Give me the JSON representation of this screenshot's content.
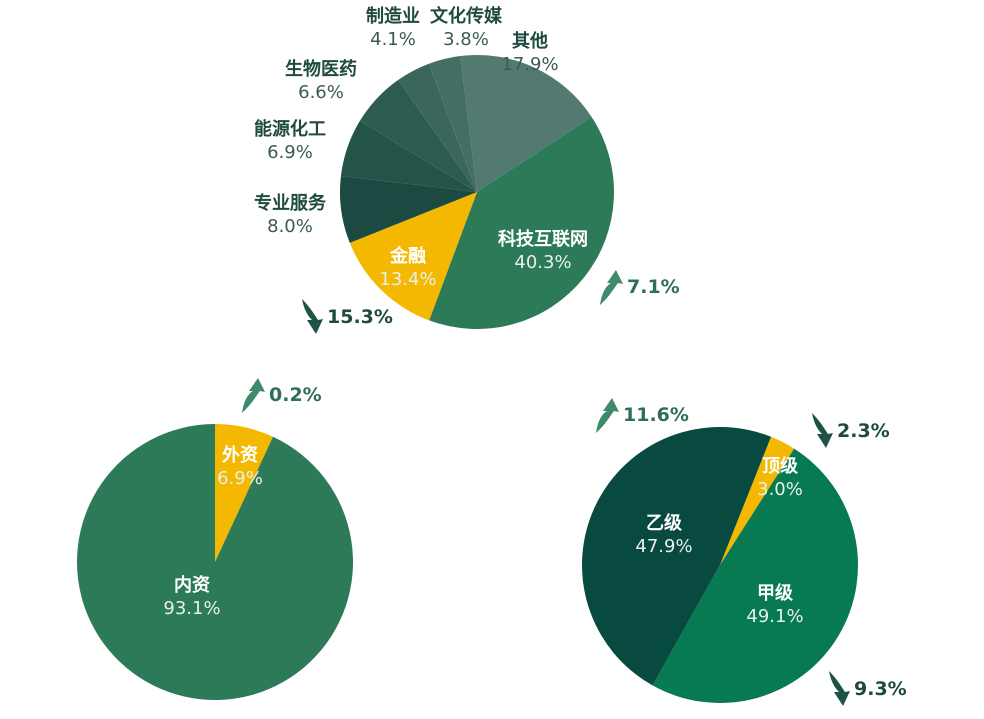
{
  "chart_data": [
    {
      "type": "pie",
      "slices": [
        {
          "label": "其他",
          "value": 17.9,
          "color": "#527a70"
        },
        {
          "label": "科技互联网",
          "value": 40.3,
          "color": "#2d7a58"
        },
        {
          "label": "金融",
          "value": 13.4,
          "color": "#f5b800"
        },
        {
          "label": "专业服务",
          "value": 8.0,
          "color": "#1c4a42"
        },
        {
          "label": "能源化工",
          "value": 6.9,
          "color": "#245448"
        },
        {
          "label": "生物医药",
          "value": 6.6,
          "color": "#2c5c50"
        },
        {
          "label": "制造业",
          "value": 4.1,
          "color": "#3a665c"
        },
        {
          "label": "文化传媒",
          "value": 3.8,
          "color": "#446e64"
        }
      ],
      "annotations": [
        {
          "target": "科技互联网",
          "direction": "up",
          "text": "7.1%"
        },
        {
          "target": "金融",
          "direction": "down",
          "text": "15.3%"
        }
      ]
    },
    {
      "type": "pie",
      "slices": [
        {
          "label": "外资",
          "value": 6.9,
          "color": "#f5b800"
        },
        {
          "label": "内资",
          "value": 93.1,
          "color": "#2d7a58"
        }
      ],
      "annotations": [
        {
          "target": "外资",
          "direction": "up",
          "text": "0.2%"
        }
      ]
    },
    {
      "type": "pie",
      "slices": [
        {
          "label": "顶级",
          "value": 3.0,
          "color": "#f5b800"
        },
        {
          "label": "甲级",
          "value": 49.1,
          "color": "#077a52"
        },
        {
          "label": "乙级",
          "value": 47.9,
          "color": "#084a40"
        }
      ],
      "annotations": [
        {
          "target": "乙级",
          "direction": "up",
          "text": "11.6%"
        },
        {
          "target": "顶级",
          "direction": "down",
          "text": "2.3%"
        },
        {
          "target": "甲级",
          "direction": "down",
          "text": "9.3%"
        }
      ]
    }
  ],
  "colors": {
    "up_arrow": "#3f8a6a",
    "down_arrow": "#1e5246"
  }
}
